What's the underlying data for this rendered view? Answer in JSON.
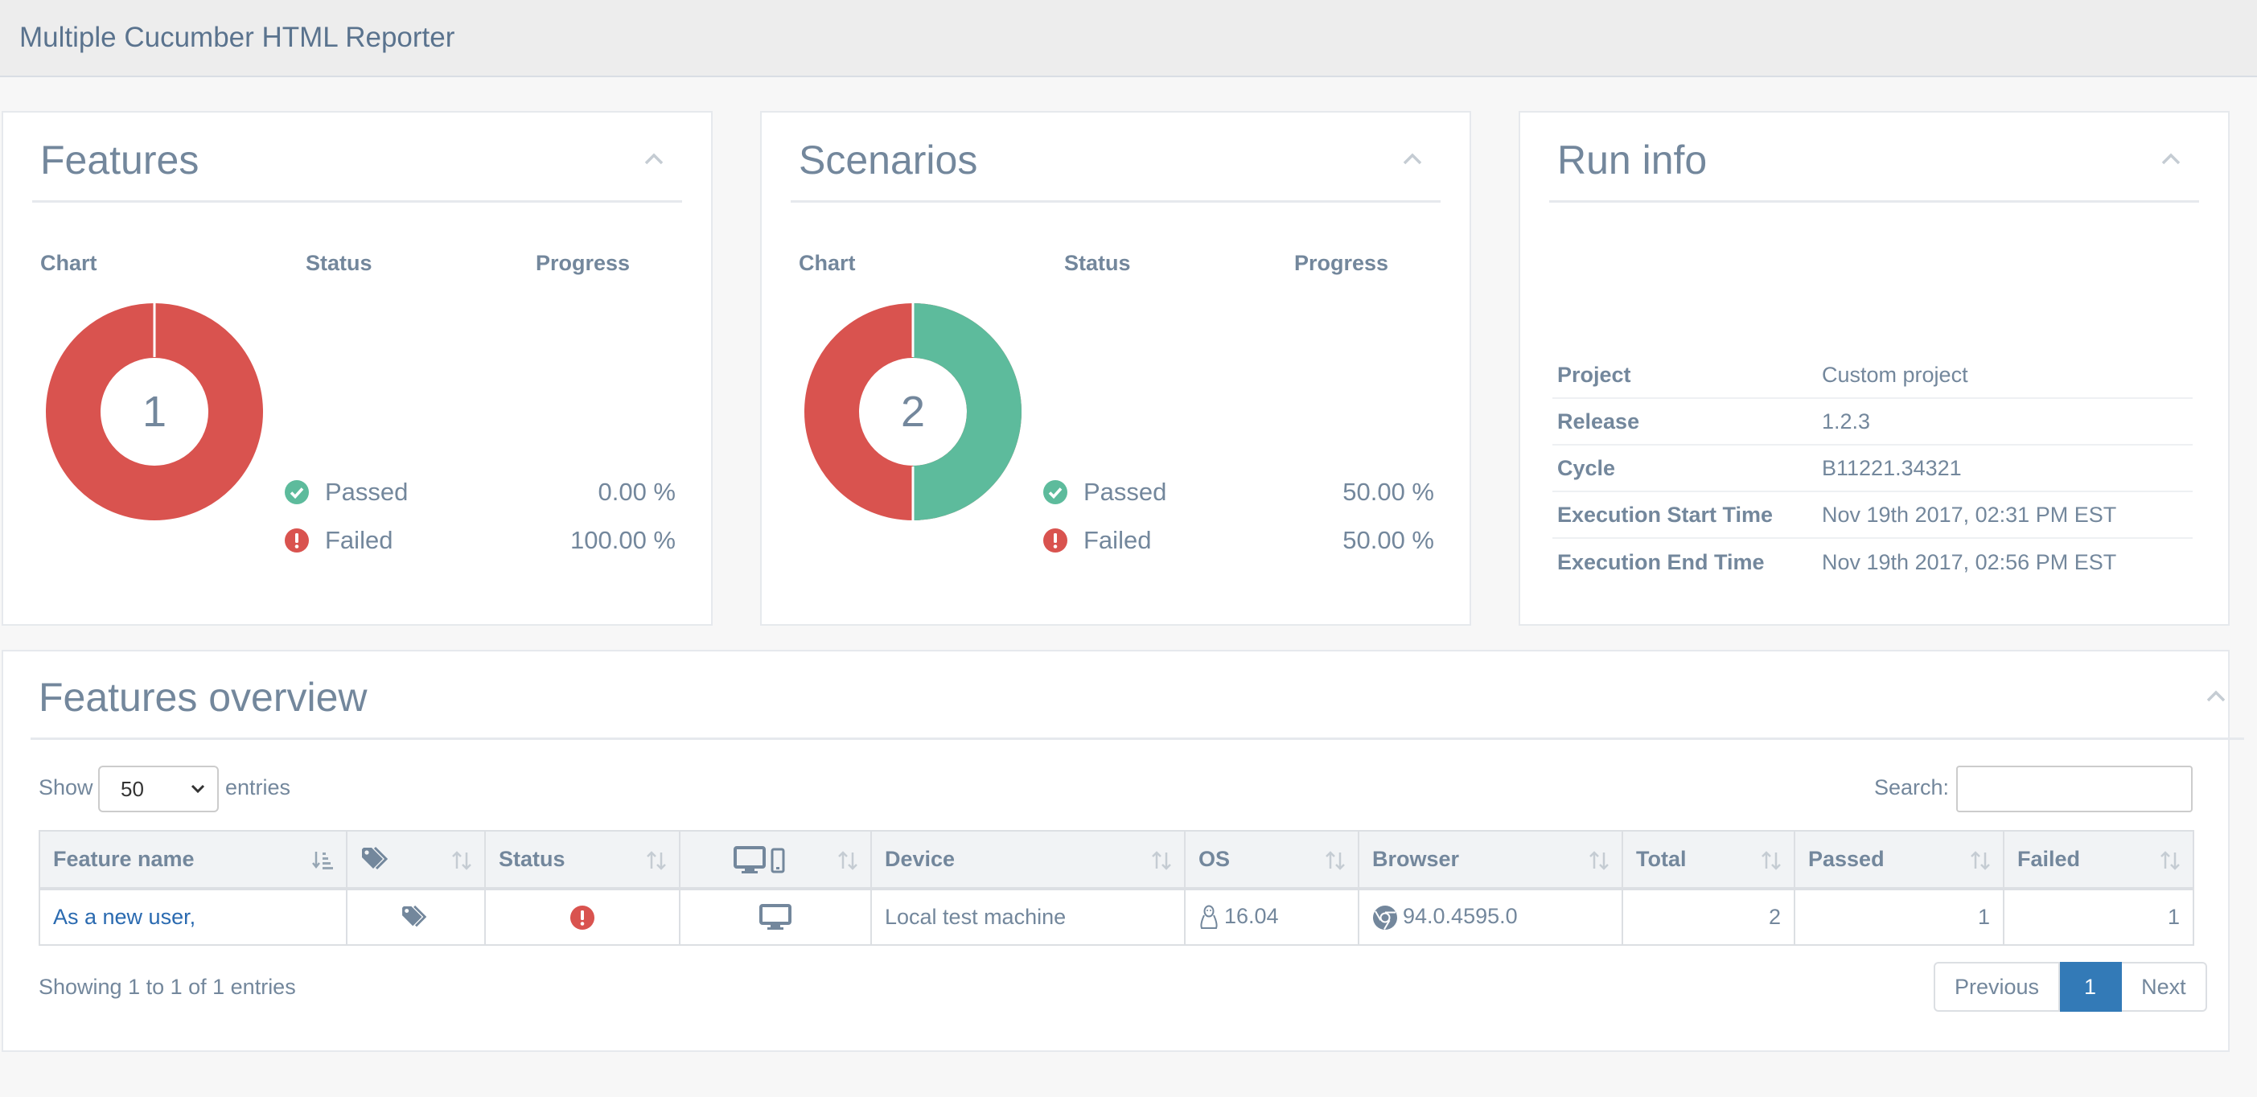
{
  "app": {
    "title": "Multiple Cucumber HTML Reporter"
  },
  "colors": {
    "passed": "#5dbb9c",
    "failed": "#d9534f",
    "link": "#2a6ab0",
    "accent": "#337ab7"
  },
  "features": {
    "title": "Features",
    "col_chart": "Chart",
    "col_status": "Status",
    "col_progress": "Progress",
    "total": "1",
    "passed_label": "Passed",
    "passed_pct": "0.00 %",
    "failed_label": "Failed",
    "failed_pct": "100.00 %",
    "passed_fraction": 0.0
  },
  "scenarios": {
    "title": "Scenarios",
    "col_chart": "Chart",
    "col_status": "Status",
    "col_progress": "Progress",
    "total": "2",
    "passed_label": "Passed",
    "passed_pct": "50.00 %",
    "failed_label": "Failed",
    "failed_pct": "50.00 %",
    "passed_fraction": 0.5
  },
  "run_info": {
    "title": "Run info",
    "rows": [
      {
        "key": "Project",
        "value": "Custom project"
      },
      {
        "key": "Release",
        "value": "1.2.3"
      },
      {
        "key": "Cycle",
        "value": "B11221.34321"
      },
      {
        "key": "Execution Start Time",
        "value": "Nov 19th 2017, 02:31 PM EST"
      },
      {
        "key": "Execution End Time",
        "value": "Nov 19th 2017, 02:56 PM EST"
      }
    ]
  },
  "overview": {
    "title": "Features overview",
    "show_label": "Show",
    "entries_value": "50",
    "entries_label": "entries",
    "search_label": "Search:",
    "columns": {
      "feature_name": "Feature name",
      "status": "Status",
      "device": "Device",
      "os": "OS",
      "browser": "Browser",
      "total": "Total",
      "passed": "Passed",
      "failed": "Failed"
    },
    "rows": [
      {
        "feature_name": "As a new user,",
        "status": "failed",
        "device": "Local test machine",
        "os_version": "16.04",
        "browser_version": "94.0.4595.0",
        "total": "2",
        "passed": "1",
        "failed": "1"
      }
    ],
    "info": "Showing 1 to 1 of 1 entries",
    "pager": {
      "previous": "Previous",
      "current": "1",
      "next": "Next"
    }
  }
}
